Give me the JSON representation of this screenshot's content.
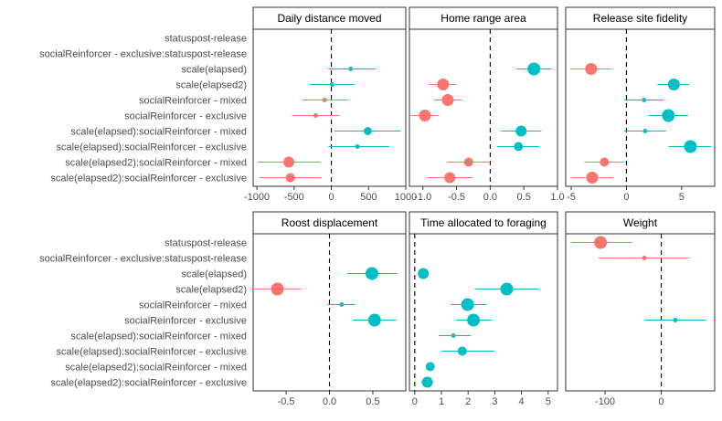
{
  "colors": {
    "negative": "#F8766D",
    "positive": "#00BFC4",
    "zero_line": "#000000",
    "panel_border": "#333333",
    "tick_label": "#4d4d4d"
  },
  "chart_data": {
    "type": "scatter",
    "style": "faceted coefficient plot with horizontal error bars, dashed zero reference line",
    "rows": [
      "statuspost-release",
      "socialReinforcer - exclusive:statuspost-release",
      "scale(elapsed)",
      "scale(elapsed2)",
      "socialReinforcer - mixed",
      "socialReinforcer - exclusive",
      "scale(elapsed):socialReinforcer - mixed",
      "scale(elapsed):socialReinforcer - exclusive",
      "scale(elapsed2):socialReinforcer - mixed",
      "scale(elapsed2):socialReinforcer - exclusive"
    ],
    "facets": [
      {
        "title": "Daily distance moved",
        "xlim": [
          -1050,
          1000
        ],
        "ticks": [
          -1000,
          -500,
          0,
          500,
          1000
        ],
        "tick_labels": [
          "-1000",
          "-500",
          "0",
          "500",
          "1000"
        ],
        "points": [
          {
            "row": 2,
            "est": 260,
            "lo": -40,
            "hi": 600,
            "size": 2.5
          },
          {
            "row": 3,
            "est": 10,
            "lo": -290,
            "hi": 320,
            "size": 2.5
          },
          {
            "row": 4,
            "est": -90,
            "lo": -390,
            "hi": 220,
            "size": 2.5
          },
          {
            "row": 5,
            "est": -210,
            "lo": -530,
            "hi": 110,
            "size": 2.5
          },
          {
            "row": 6,
            "est": 490,
            "lo": 40,
            "hi": 930,
            "size": 4.5
          },
          {
            "row": 7,
            "est": 350,
            "lo": -40,
            "hi": 780,
            "size": 2.5
          },
          {
            "row": 8,
            "est": -570,
            "lo": -990,
            "hi": -150,
            "size": 6
          },
          {
            "row": 9,
            "est": -550,
            "lo": -970,
            "hi": -130,
            "size": 5
          }
        ]
      },
      {
        "title": "Home range area",
        "xlim": [
          -1.2,
          1.0
        ],
        "ticks": [
          -1.0,
          -0.5,
          0.0,
          0.5,
          1.0
        ],
        "tick_labels": [
          "-1.0",
          "-0.5",
          "0.0",
          "0.5",
          "1.0"
        ],
        "points": [
          {
            "row": 2,
            "est": 0.65,
            "lo": 0.39,
            "hi": 0.92,
            "size": 7
          },
          {
            "row": 3,
            "est": -0.7,
            "lo": -0.91,
            "hi": -0.5,
            "size": 6.5
          },
          {
            "row": 4,
            "est": -0.63,
            "lo": -0.84,
            "hi": -0.42,
            "size": 6.5
          },
          {
            "row": 5,
            "est": -0.97,
            "lo": -1.18,
            "hi": -0.76,
            "size": 6.5
          },
          {
            "row": 6,
            "est": 0.46,
            "lo": 0.16,
            "hi": 0.76,
            "size": 6
          },
          {
            "row": 7,
            "est": 0.42,
            "lo": 0.1,
            "hi": 0.73,
            "size": 5
          },
          {
            "row": 8,
            "est": -0.32,
            "lo": -0.64,
            "hi": -0.02,
            "size": 5
          },
          {
            "row": 9,
            "est": -0.6,
            "lo": -0.93,
            "hi": -0.26,
            "size": 6
          }
        ]
      },
      {
        "title": "Release site fidelity",
        "xlim": [
          -5.5,
          8.0
        ],
        "ticks": [
          -5,
          0,
          5
        ],
        "tick_labels": [
          "-5",
          "0",
          "5"
        ],
        "points": [
          {
            "row": 2,
            "est": -3.2,
            "lo": -5.1,
            "hi": -1.3,
            "size": 6.5
          },
          {
            "row": 3,
            "est": 4.3,
            "lo": 2.8,
            "hi": 5.7,
            "size": 6.5
          },
          {
            "row": 4,
            "est": 1.6,
            "lo": -0.2,
            "hi": 3.4,
            "size": 2.5
          },
          {
            "row": 5,
            "est": 3.8,
            "lo": 2.0,
            "hi": 5.6,
            "size": 7
          },
          {
            "row": 6,
            "est": 1.7,
            "lo": -0.2,
            "hi": 3.6,
            "size": 2.5
          },
          {
            "row": 7,
            "est": 5.8,
            "lo": 3.8,
            "hi": 7.7,
            "size": 7
          },
          {
            "row": 8,
            "est": -2.0,
            "lo": -3.8,
            "hi": -0.2,
            "size": 5
          },
          {
            "row": 9,
            "est": -3.1,
            "lo": -5.0,
            "hi": -1.2,
            "size": 6.5
          }
        ]
      },
      {
        "title": "Roost displacement",
        "xlim": [
          -0.88,
          0.88
        ],
        "ticks": [
          -0.5,
          0.0,
          0.5
        ],
        "tick_labels": [
          "-0.5",
          "0.0",
          "0.5"
        ],
        "points": [
          {
            "row": 2,
            "est": 0.49,
            "lo": 0.2,
            "hi": 0.78,
            "size": 7
          },
          {
            "row": 3,
            "est": -0.6,
            "lo": -0.88,
            "hi": -0.33,
            "size": 7
          },
          {
            "row": 4,
            "est": 0.14,
            "lo": -0.02,
            "hi": 0.3,
            "size": 2.5
          },
          {
            "row": 5,
            "est": 0.52,
            "lo": 0.27,
            "hi": 0.77,
            "size": 7
          }
        ]
      },
      {
        "title": "Time allocated to foraging",
        "xlim": [
          -0.2,
          5.35
        ],
        "ticks": [
          0,
          1,
          2,
          3,
          4,
          5
        ],
        "tick_labels": [
          "0",
          "1",
          "2",
          "3",
          "4",
          "5"
        ],
        "points": [
          {
            "row": 2,
            "est": 0.32,
            "lo": 0.25,
            "hi": 0.4,
            "size": 6
          },
          {
            "row": 3,
            "est": 3.45,
            "lo": 2.25,
            "hi": 4.65,
            "size": 7
          },
          {
            "row": 4,
            "est": 1.98,
            "lo": 1.35,
            "hi": 2.68,
            "size": 7
          },
          {
            "row": 5,
            "est": 2.2,
            "lo": 1.55,
            "hi": 2.9,
            "size": 7
          },
          {
            "row": 6,
            "est": 1.45,
            "lo": 0.9,
            "hi": 2.1,
            "size": 2.5
          },
          {
            "row": 7,
            "est": 1.78,
            "lo": 1.0,
            "hi": 2.98,
            "size": 5
          },
          {
            "row": 8,
            "est": 0.58,
            "lo": 0.42,
            "hi": 0.75,
            "size": 5
          },
          {
            "row": 9,
            "est": 0.47,
            "lo": 0.25,
            "hi": 0.7,
            "size": 6
          }
        ]
      },
      {
        "title": "Weight",
        "xlim": [
          -170,
          95
        ],
        "ticks": [
          -100,
          0
        ],
        "tick_labels": [
          "-100",
          "0"
        ],
        "points": [
          {
            "row": 0,
            "est": -108,
            "lo": -160,
            "hi": -52,
            "size": 7
          },
          {
            "row": 1,
            "est": -30,
            "lo": -112,
            "hi": 50,
            "size": 2.5
          },
          {
            "row": 5,
            "est": 25,
            "lo": -30,
            "hi": 80,
            "size": 2.5
          }
        ]
      }
    ]
  }
}
